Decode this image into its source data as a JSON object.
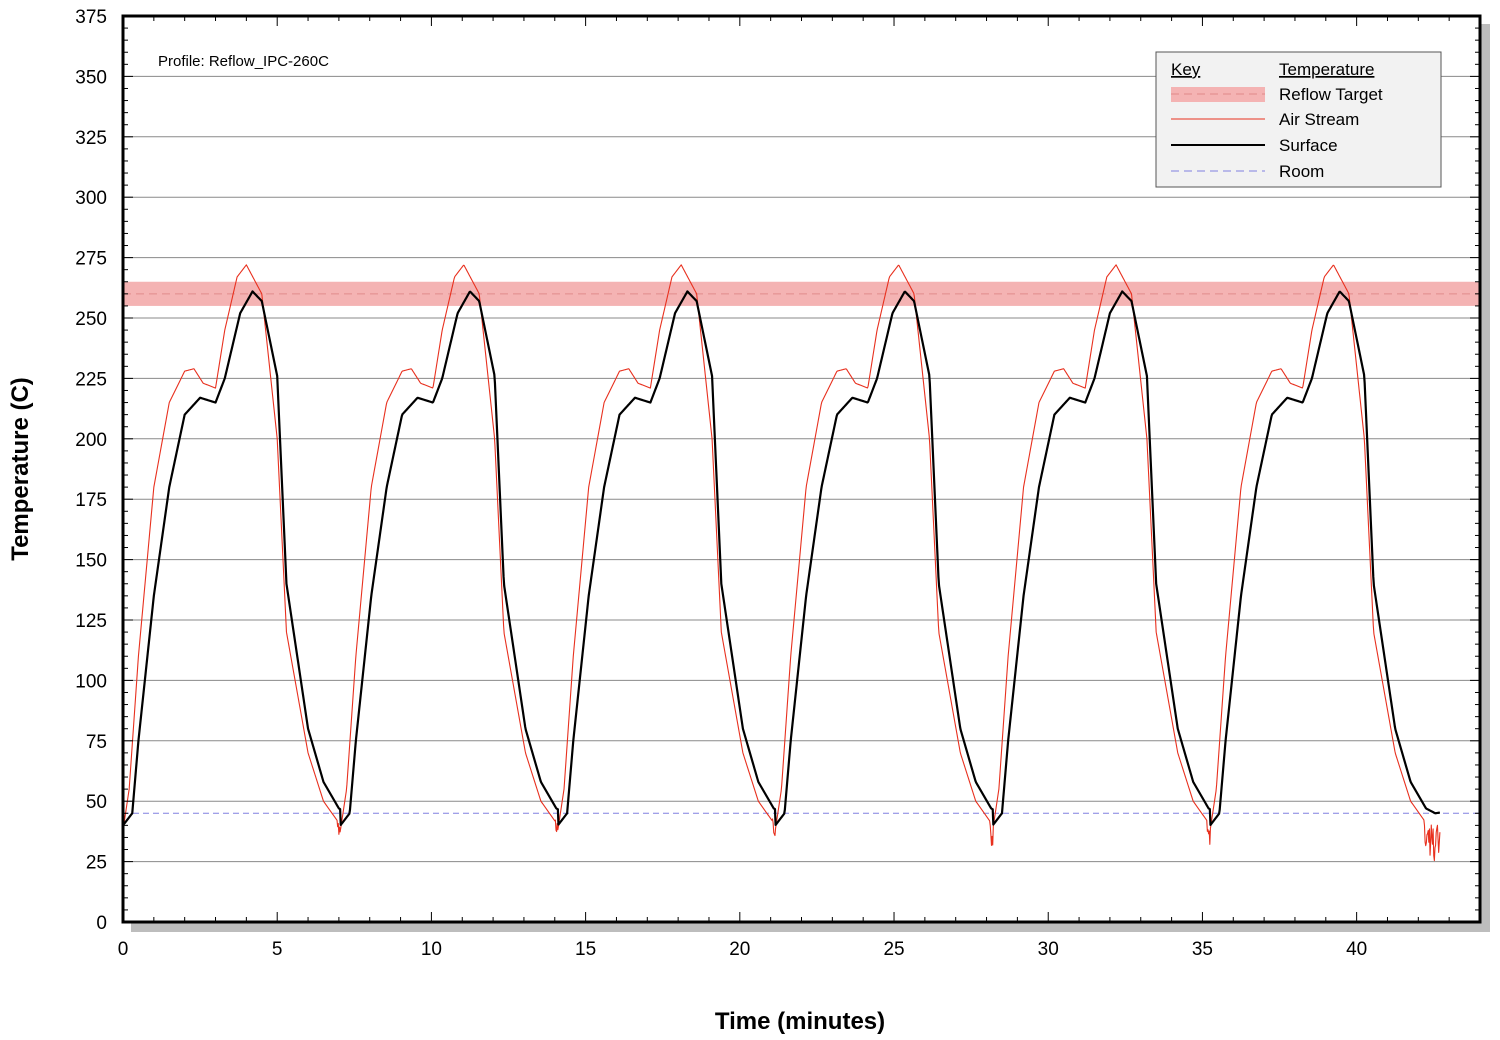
{
  "chart_data": {
    "type": "line",
    "annotation": "Profile: Reflow_IPC-260C",
    "xlabel": "Time (minutes)",
    "ylabel": "Temperature (C)",
    "xlim": [
      0,
      44
    ],
    "ylim": [
      0,
      375
    ],
    "x_ticks": [
      0,
      5,
      10,
      15,
      20,
      25,
      30,
      35,
      40
    ],
    "y_ticks": [
      0,
      25,
      50,
      75,
      100,
      125,
      150,
      175,
      200,
      225,
      250,
      275,
      300,
      325,
      350,
      375
    ],
    "grid": "horizontal",
    "legend": {
      "position": "top-right",
      "header_key": "Key",
      "header_value": "Temperature",
      "entries": [
        {
          "id": "reflow-target",
          "label": "Reflow Target"
        },
        {
          "id": "air-stream",
          "label": "Air Stream"
        },
        {
          "id": "surface",
          "label": "Surface"
        },
        {
          "id": "room",
          "label": "Room"
        }
      ]
    },
    "reflow_target": {
      "value": 260,
      "band": [
        255,
        265
      ],
      "color": "#f4b3b3",
      "line_color": "#e08a8a"
    },
    "room": {
      "value": 45,
      "color": "#8080e0"
    },
    "colors": {
      "air_stream": "#e8301e",
      "surface": "#000000"
    },
    "cycle_period_minutes": 7.05,
    "cycle_count": 6,
    "series": [
      {
        "name": "Surface",
        "x": [
          0,
          0.3,
          0.5,
          1.0,
          1.5,
          2.0,
          2.5,
          3.0,
          3.3,
          3.8,
          4.2,
          4.5,
          5.0,
          5.3,
          6.0,
          6.5,
          7.0,
          7.3,
          7.8
        ],
        "values": [
          40,
          45,
          75,
          135,
          180,
          210,
          217,
          215,
          225,
          252,
          261,
          257,
          226,
          140,
          80,
          58,
          47,
          45,
          46
        ]
      },
      {
        "name": "Air Stream",
        "x": [
          0,
          0.2,
          0.5,
          1.0,
          1.5,
          2.0,
          2.3,
          2.6,
          3.0,
          3.3,
          3.7,
          4.0,
          4.5,
          5.0,
          5.3,
          6.0,
          6.5,
          7.0,
          7.3,
          7.8
        ],
        "values": [
          38,
          55,
          110,
          180,
          215,
          228,
          229,
          223,
          221,
          245,
          267,
          272,
          260,
          200,
          120,
          70,
          50,
          41,
          38,
          45
        ]
      }
    ]
  }
}
